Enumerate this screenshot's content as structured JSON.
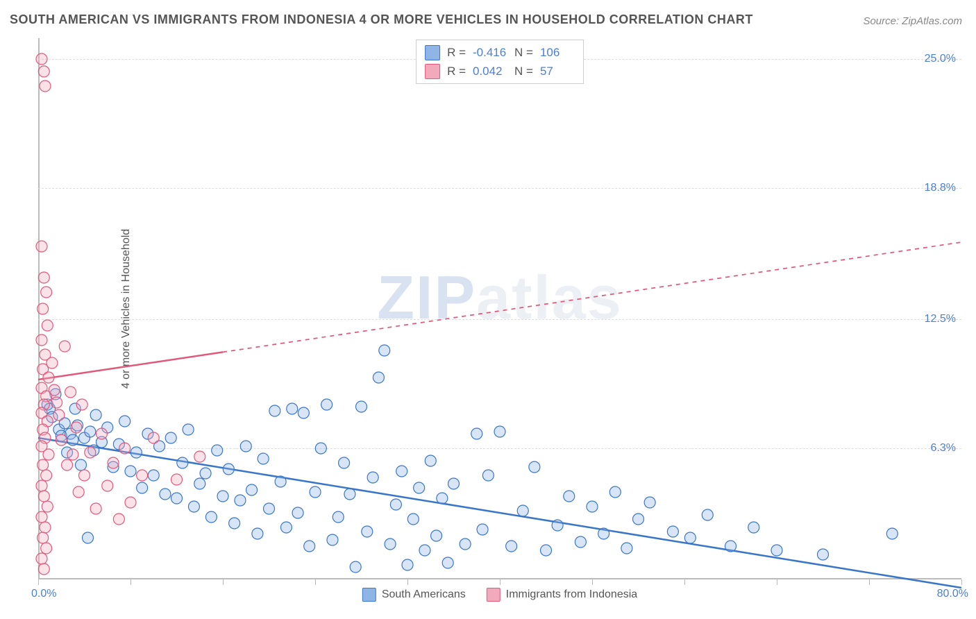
{
  "title": "SOUTH AMERICAN VS IMMIGRANTS FROM INDONESIA 4 OR MORE VEHICLES IN HOUSEHOLD CORRELATION CHART",
  "source": "Source: ZipAtlas.com",
  "y_axis_label": "4 or more Vehicles in Household",
  "watermark_a": "ZIP",
  "watermark_b": "atlas",
  "chart": {
    "type": "scatter",
    "background_color": "#ffffff",
    "grid_color": "#dddddd",
    "axis_color": "#bbbbbb",
    "marker_radius": 8,
    "marker_stroke_width": 1.2,
    "marker_fill_opacity": 0.35,
    "trend_line_width": 2.5,
    "xlim": [
      0,
      80
    ],
    "ylim": [
      0,
      26
    ],
    "x_tick_labels": {
      "min": "0.0%",
      "max": "80.0%"
    },
    "x_tick_positions": [
      0,
      8,
      16,
      24,
      32,
      40,
      48,
      56,
      64,
      72,
      80
    ],
    "y_ticks": [
      {
        "v": 6.3,
        "label": "6.3%"
      },
      {
        "v": 12.5,
        "label": "12.5%"
      },
      {
        "v": 18.8,
        "label": "18.8%"
      },
      {
        "v": 25.0,
        "label": "25.0%"
      }
    ],
    "series": [
      {
        "id": "south_americans",
        "label": "South Americans",
        "color_stroke": "#3a76c8",
        "color_fill": "#8fb4e6",
        "stats": {
          "r": "-0.416",
          "n": "106"
        },
        "trend": {
          "x1": 0,
          "y1": 6.8,
          "x2": 80,
          "y2": -0.4,
          "solid_until_x": 80
        },
        "points": [
          [
            0.8,
            8.4
          ],
          [
            1.0,
            8.2
          ],
          [
            1.2,
            7.8
          ],
          [
            1.5,
            8.9
          ],
          [
            1.8,
            7.2
          ],
          [
            2.0,
            6.9
          ],
          [
            2.3,
            7.5
          ],
          [
            2.5,
            6.1
          ],
          [
            2.8,
            7.0
          ],
          [
            3.0,
            6.7
          ],
          [
            3.2,
            8.2
          ],
          [
            3.4,
            7.4
          ],
          [
            3.7,
            5.5
          ],
          [
            4.0,
            6.8
          ],
          [
            4.3,
            2.0
          ],
          [
            4.5,
            7.1
          ],
          [
            4.8,
            6.2
          ],
          [
            5.0,
            7.9
          ],
          [
            5.5,
            6.6
          ],
          [
            6.0,
            7.3
          ],
          [
            6.5,
            5.4
          ],
          [
            7.0,
            6.5
          ],
          [
            7.5,
            7.6
          ],
          [
            8.0,
            5.2
          ],
          [
            8.5,
            6.1
          ],
          [
            9.0,
            4.4
          ],
          [
            9.5,
            7.0
          ],
          [
            10.0,
            5.0
          ],
          [
            10.5,
            6.4
          ],
          [
            11.0,
            4.1
          ],
          [
            11.5,
            6.8
          ],
          [
            12.0,
            3.9
          ],
          [
            12.5,
            5.6
          ],
          [
            13.0,
            7.2
          ],
          [
            13.5,
            3.5
          ],
          [
            14.0,
            4.6
          ],
          [
            14.5,
            5.1
          ],
          [
            15.0,
            3.0
          ],
          [
            15.5,
            6.2
          ],
          [
            16.0,
            4.0
          ],
          [
            16.5,
            5.3
          ],
          [
            17.0,
            2.7
          ],
          [
            17.5,
            3.8
          ],
          [
            18.0,
            6.4
          ],
          [
            18.5,
            4.3
          ],
          [
            19.0,
            2.2
          ],
          [
            19.5,
            5.8
          ],
          [
            20.0,
            3.4
          ],
          [
            20.5,
            8.1
          ],
          [
            21.0,
            4.7
          ],
          [
            21.5,
            2.5
          ],
          [
            22.0,
            8.2
          ],
          [
            22.5,
            3.2
          ],
          [
            23.0,
            8.0
          ],
          [
            23.5,
            1.6
          ],
          [
            24.0,
            4.2
          ],
          [
            24.5,
            6.3
          ],
          [
            25.0,
            8.4
          ],
          [
            25.5,
            1.9
          ],
          [
            26.0,
            3.0
          ],
          [
            26.5,
            5.6
          ],
          [
            27.0,
            4.1
          ],
          [
            27.5,
            0.6
          ],
          [
            28.0,
            8.3
          ],
          [
            28.5,
            2.3
          ],
          [
            29.0,
            4.9
          ],
          [
            29.5,
            9.7
          ],
          [
            30.0,
            11.0
          ],
          [
            30.5,
            1.7
          ],
          [
            31.0,
            3.6
          ],
          [
            31.5,
            5.2
          ],
          [
            32.0,
            0.7
          ],
          [
            32.5,
            2.9
          ],
          [
            33.0,
            4.4
          ],
          [
            33.5,
            1.4
          ],
          [
            34.0,
            5.7
          ],
          [
            34.5,
            2.1
          ],
          [
            35.0,
            3.9
          ],
          [
            35.5,
            0.8
          ],
          [
            36.0,
            4.6
          ],
          [
            37.0,
            1.7
          ],
          [
            38.0,
            7.0
          ],
          [
            38.5,
            2.4
          ],
          [
            39.0,
            5.0
          ],
          [
            40.0,
            7.1
          ],
          [
            41.0,
            1.6
          ],
          [
            42.0,
            3.3
          ],
          [
            43.0,
            5.4
          ],
          [
            44.0,
            1.4
          ],
          [
            45.0,
            2.6
          ],
          [
            46.0,
            4.0
          ],
          [
            47.0,
            1.8
          ],
          [
            48.0,
            3.5
          ],
          [
            49.0,
            2.2
          ],
          [
            50.0,
            4.2
          ],
          [
            51.0,
            1.5
          ],
          [
            52.0,
            2.9
          ],
          [
            53.0,
            3.7
          ],
          [
            55.0,
            2.3
          ],
          [
            56.5,
            2.0
          ],
          [
            58.0,
            3.1
          ],
          [
            60.0,
            1.6
          ],
          [
            62.0,
            2.5
          ],
          [
            64.0,
            1.4
          ],
          [
            68.0,
            1.2
          ],
          [
            74.0,
            2.2
          ]
        ]
      },
      {
        "id": "immigrants_indonesia",
        "label": "Immigrants from Indonesia",
        "color_stroke": "#e0597a",
        "color_fill": "#f3a9bc",
        "stats": {
          "r": "0.042",
          "n": "57"
        },
        "trend": {
          "x1": 0,
          "y1": 9.6,
          "x2": 80,
          "y2": 16.2,
          "solid_until_x": 16
        },
        "points": [
          [
            0.3,
            25.0
          ],
          [
            0.5,
            24.4
          ],
          [
            0.6,
            23.7
          ],
          [
            0.3,
            16.0
          ],
          [
            0.5,
            14.5
          ],
          [
            0.7,
            13.8
          ],
          [
            0.4,
            13.0
          ],
          [
            0.8,
            12.2
          ],
          [
            0.3,
            11.5
          ],
          [
            0.6,
            10.8
          ],
          [
            0.4,
            10.1
          ],
          [
            0.9,
            9.7
          ],
          [
            0.3,
            9.2
          ],
          [
            0.7,
            8.8
          ],
          [
            0.5,
            8.4
          ],
          [
            0.3,
            8.0
          ],
          [
            0.8,
            7.6
          ],
          [
            0.4,
            7.2
          ],
          [
            0.6,
            6.8
          ],
          [
            0.3,
            6.4
          ],
          [
            0.9,
            6.0
          ],
          [
            0.4,
            5.5
          ],
          [
            0.7,
            5.0
          ],
          [
            0.3,
            4.5
          ],
          [
            0.5,
            4.0
          ],
          [
            0.8,
            3.5
          ],
          [
            0.3,
            3.0
          ],
          [
            0.6,
            2.5
          ],
          [
            0.4,
            2.0
          ],
          [
            0.7,
            1.5
          ],
          [
            0.3,
            1.0
          ],
          [
            0.5,
            0.5
          ],
          [
            1.2,
            10.4
          ],
          [
            1.4,
            9.1
          ],
          [
            1.6,
            8.5
          ],
          [
            1.8,
            7.9
          ],
          [
            2.0,
            6.7
          ],
          [
            2.3,
            11.2
          ],
          [
            2.5,
            5.5
          ],
          [
            2.8,
            9.0
          ],
          [
            3.0,
            6.0
          ],
          [
            3.3,
            7.3
          ],
          [
            3.5,
            4.2
          ],
          [
            3.8,
            8.4
          ],
          [
            4.0,
            5.0
          ],
          [
            4.5,
            6.1
          ],
          [
            5.0,
            3.4
          ],
          [
            5.5,
            7.0
          ],
          [
            6.0,
            4.5
          ],
          [
            6.5,
            5.6
          ],
          [
            7.0,
            2.9
          ],
          [
            7.5,
            6.3
          ],
          [
            8.0,
            3.7
          ],
          [
            9.0,
            5.0
          ],
          [
            10.0,
            6.8
          ],
          [
            12.0,
            4.8
          ],
          [
            14.0,
            5.9
          ]
        ]
      }
    ]
  },
  "stats_box_labels": {
    "r": "R =",
    "n": "N ="
  }
}
